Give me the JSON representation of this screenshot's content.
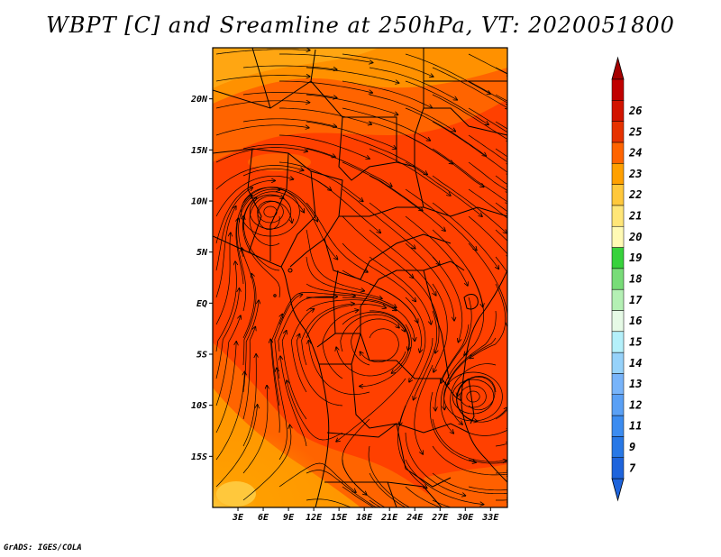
{
  "title": "WBPT [C] and Sreamline at 250hPa, VT: 2020051800",
  "credit": "GrADS: IGES/COLA",
  "map": {
    "variable": "Wet-bulb potential temperature",
    "units": "C",
    "level": "250hPa",
    "lat_range": [
      -20,
      25
    ],
    "lon_range": [
      0,
      35
    ],
    "lat_ticks": [
      {
        "value": 20,
        "label": "20N"
      },
      {
        "value": 15,
        "label": "15N"
      },
      {
        "value": 10,
        "label": "10N"
      },
      {
        "value": 5,
        "label": "5N"
      },
      {
        "value": 0,
        "label": "EQ"
      },
      {
        "value": -5,
        "label": "5S"
      },
      {
        "value": -10,
        "label": "10S"
      },
      {
        "value": -15,
        "label": "15S"
      }
    ],
    "lon_ticks": [
      {
        "value": 3,
        "label": "3E"
      },
      {
        "value": 6,
        "label": "6E"
      },
      {
        "value": 9,
        "label": "9E"
      },
      {
        "value": 12,
        "label": "12E"
      },
      {
        "value": 15,
        "label": "15E"
      },
      {
        "value": 18,
        "label": "18E"
      },
      {
        "value": 21,
        "label": "21E"
      },
      {
        "value": 24,
        "label": "24E"
      },
      {
        "value": 27,
        "label": "27E"
      },
      {
        "value": 30,
        "label": "30E"
      },
      {
        "value": 33,
        "label": "33E"
      }
    ]
  },
  "colorbar": {
    "labels": [
      "7",
      "9",
      "11",
      "12",
      "13",
      "14",
      "15",
      "16",
      "17",
      "18",
      "19",
      "20",
      "21",
      "22",
      "23",
      "24",
      "25",
      "26"
    ],
    "colors": [
      "#1e64dc",
      "#2878e6",
      "#3c8cf0",
      "#5aa0f5",
      "#78b4fa",
      "#96d2fa",
      "#b4f0fa",
      "#e6fae6",
      "#b4f0b4",
      "#78dc78",
      "#37d23c",
      "#fffab4",
      "#ffe678",
      "#ffc83c",
      "#ffa000",
      "#ff6400",
      "#e63200",
      "#d21400",
      "#c00000"
    ],
    "top_color": "#a50000",
    "bottom_color": "#1e64dc"
  }
}
